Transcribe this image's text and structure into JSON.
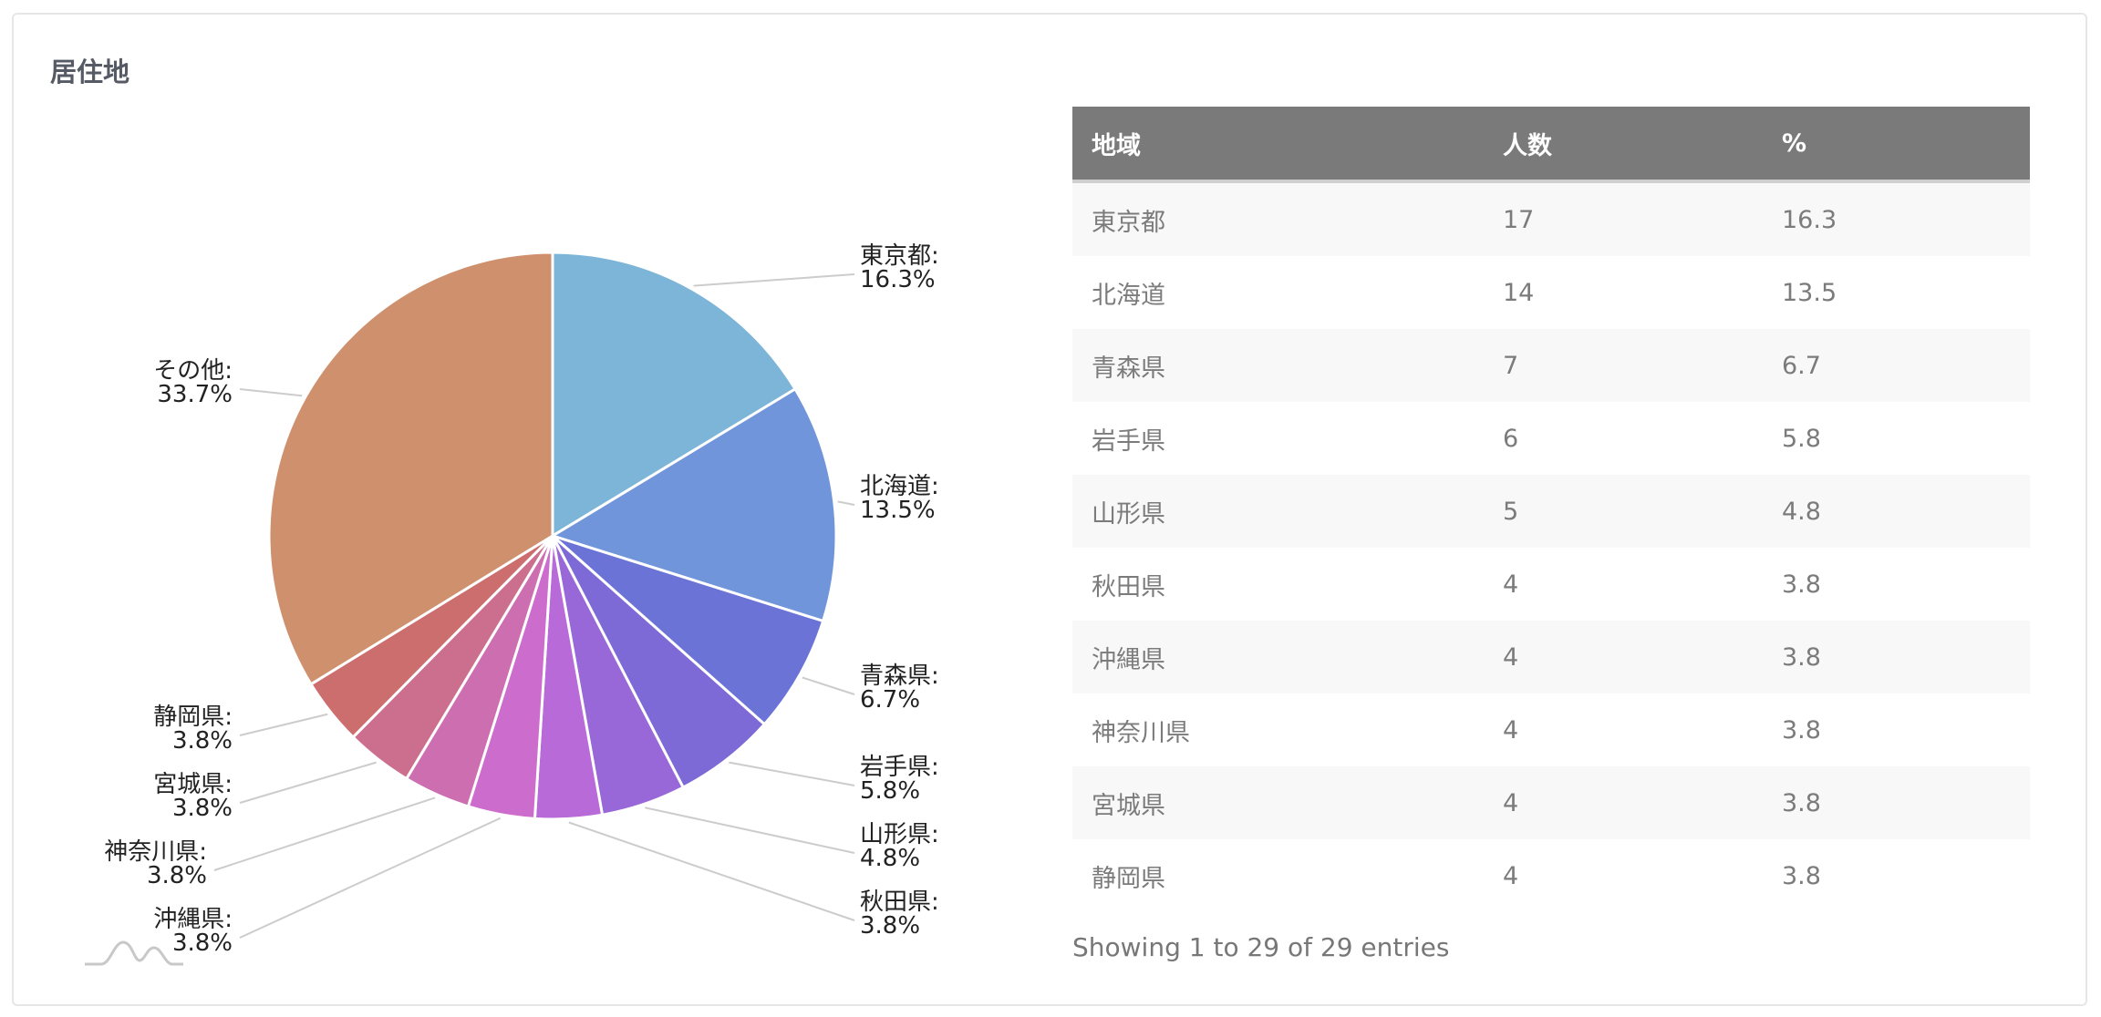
{
  "panel": {
    "title": "居住地"
  },
  "table": {
    "headers": [
      "地域",
      "人数",
      "%"
    ],
    "rows": [
      [
        "東京都",
        "17",
        "16.3"
      ],
      [
        "北海道",
        "14",
        "13.5"
      ],
      [
        "青森県",
        "7",
        "6.7"
      ],
      [
        "岩手県",
        "6",
        "5.8"
      ],
      [
        "山形県",
        "5",
        "4.8"
      ],
      [
        "秋田県",
        "4",
        "3.8"
      ],
      [
        "沖縄県",
        "4",
        "3.8"
      ],
      [
        "神奈川県",
        "4",
        "3.8"
      ],
      [
        "宮城県",
        "4",
        "3.8"
      ],
      [
        "静岡県",
        "4",
        "3.8"
      ]
    ],
    "info": "Showing 1 to 29 of 29 entries"
  },
  "chart_data": {
    "type": "pie",
    "slices": [
      {
        "label": "東京都",
        "value": 16.3,
        "display": "16.3%",
        "color": "#7cb5d8"
      },
      {
        "label": "北海道",
        "value": 13.5,
        "display": "13.5%",
        "color": "#7195da"
      },
      {
        "label": "青森県",
        "value": 6.7,
        "display": "6.7%",
        "color": "#6b74d6"
      },
      {
        "label": "岩手県",
        "value": 5.8,
        "display": "5.8%",
        "color": "#7e6ad6"
      },
      {
        "label": "山形県",
        "value": 4.8,
        "display": "4.8%",
        "color": "#9968d8"
      },
      {
        "label": "秋田県",
        "value": 3.8,
        "display": "3.8%",
        "color": "#b86ad8"
      },
      {
        "label": "沖縄県",
        "value": 3.8,
        "display": "3.8%",
        "color": "#cc6ccc"
      },
      {
        "label": "神奈川県",
        "value": 3.8,
        "display": "3.8%",
        "color": "#cc6eb0"
      },
      {
        "label": "宮城県",
        "value": 3.8,
        "display": "3.8%",
        "color": "#cc6e8e"
      },
      {
        "label": "静岡県",
        "value": 3.8,
        "display": "3.8%",
        "color": "#cc6e6e"
      },
      {
        "label": "その他",
        "value": 33.7,
        "display": "33.7%",
        "color": "#cf906d"
      }
    ]
  }
}
